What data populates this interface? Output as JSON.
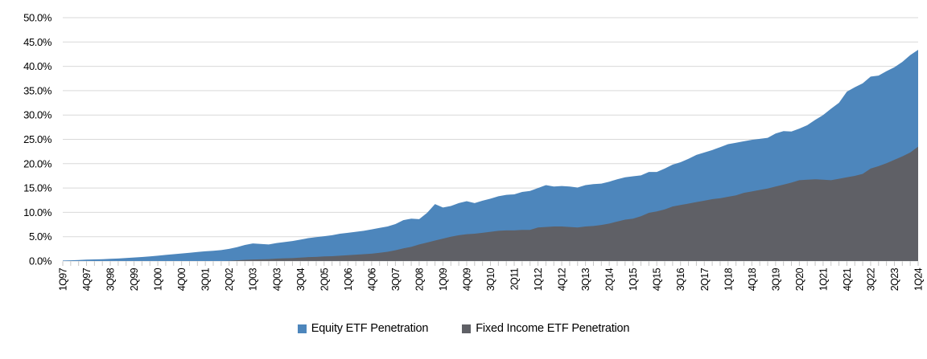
{
  "chart_data": {
    "type": "area",
    "title": "",
    "xlabel": "",
    "ylabel": "",
    "ylim": [
      0,
      50
    ],
    "y_tick_step": 5,
    "y_tick_format": "percent_one_decimal",
    "x_label_every": 3,
    "grid": "horizontal",
    "legend_position": "bottom-center",
    "x": [
      "1Q97",
      "2Q97",
      "3Q97",
      "4Q97",
      "1Q98",
      "2Q98",
      "3Q98",
      "4Q98",
      "1Q99",
      "2Q99",
      "3Q99",
      "4Q99",
      "1Q00",
      "2Q00",
      "3Q00",
      "4Q00",
      "1Q01",
      "2Q01",
      "3Q01",
      "4Q01",
      "1Q02",
      "2Q02",
      "3Q02",
      "4Q02",
      "1Q03",
      "2Q03",
      "3Q03",
      "4Q03",
      "1Q04",
      "2Q04",
      "3Q04",
      "4Q04",
      "1Q05",
      "2Q05",
      "3Q05",
      "4Q05",
      "1Q06",
      "2Q06",
      "3Q06",
      "4Q06",
      "1Q07",
      "2Q07",
      "3Q07",
      "4Q07",
      "1Q08",
      "2Q08",
      "3Q08",
      "4Q08",
      "1Q09",
      "2Q09",
      "3Q09",
      "4Q09",
      "1Q10",
      "2Q10",
      "3Q10",
      "4Q10",
      "1Q11",
      "2Q11",
      "3Q11",
      "4Q11",
      "1Q12",
      "2Q12",
      "3Q12",
      "4Q12",
      "1Q13",
      "2Q13",
      "3Q13",
      "4Q13",
      "1Q14",
      "2Q14",
      "3Q14",
      "4Q14",
      "1Q15",
      "2Q15",
      "3Q15",
      "4Q15",
      "1Q16",
      "2Q16",
      "3Q16",
      "4Q16",
      "1Q17",
      "2Q17",
      "3Q17",
      "4Q17",
      "1Q18",
      "2Q18",
      "3Q18",
      "4Q18",
      "1Q19",
      "2Q19",
      "3Q19",
      "4Q19",
      "1Q20",
      "2Q20",
      "3Q20",
      "4Q20",
      "1Q21",
      "2Q21",
      "3Q21",
      "4Q21",
      "1Q22",
      "2Q22",
      "3Q22",
      "4Q22",
      "1Q23",
      "2Q23",
      "3Q23",
      "4Q23",
      "1Q24"
    ],
    "series": [
      {
        "name": "Equity ETF Penetration",
        "color": "#4D86BC",
        "values": [
          0.1,
          0.15,
          0.2,
          0.28,
          0.33,
          0.38,
          0.45,
          0.52,
          0.62,
          0.72,
          0.82,
          0.95,
          1.1,
          1.25,
          1.4,
          1.55,
          1.7,
          1.85,
          2.0,
          2.1,
          2.25,
          2.5,
          2.85,
          3.3,
          3.6,
          3.5,
          3.4,
          3.7,
          3.9,
          4.1,
          4.4,
          4.7,
          4.9,
          5.1,
          5.3,
          5.6,
          5.8,
          6.0,
          6.2,
          6.5,
          6.8,
          7.1,
          7.6,
          8.4,
          8.7,
          8.6,
          9.9,
          11.7,
          11.0,
          11.3,
          11.9,
          12.3,
          11.9,
          12.4,
          12.8,
          13.3,
          13.6,
          13.7,
          14.2,
          14.4,
          15.0,
          15.6,
          15.3,
          15.4,
          15.3,
          15.1,
          15.6,
          15.8,
          15.9,
          16.3,
          16.8,
          17.2,
          17.4,
          17.6,
          18.3,
          18.3,
          19.0,
          19.8,
          20.3,
          21.0,
          21.8,
          22.3,
          22.8,
          23.4,
          24.0,
          24.3,
          24.6,
          24.9,
          25.1,
          25.3,
          26.2,
          26.7,
          26.6,
          27.2,
          27.9,
          29.0,
          30.0,
          31.3,
          32.5,
          34.8,
          35.7,
          36.5,
          37.9,
          38.1,
          39.0,
          39.8,
          40.9,
          42.3,
          43.4
        ]
      },
      {
        "name": "Fixed Income ETF Penetration",
        "color": "#5F6066",
        "values": [
          0,
          0,
          0,
          0,
          0,
          0,
          0,
          0,
          0,
          0,
          0,
          0,
          0,
          0,
          0,
          0,
          0,
          0,
          0,
          0,
          0,
          0.05,
          0.15,
          0.25,
          0.3,
          0.35,
          0.4,
          0.5,
          0.55,
          0.6,
          0.7,
          0.8,
          0.85,
          0.95,
          1.0,
          1.1,
          1.2,
          1.3,
          1.4,
          1.5,
          1.7,
          1.9,
          2.2,
          2.6,
          2.9,
          3.4,
          3.8,
          4.2,
          4.6,
          5.0,
          5.3,
          5.5,
          5.6,
          5.8,
          6.0,
          6.2,
          6.3,
          6.3,
          6.4,
          6.4,
          6.9,
          7.0,
          7.1,
          7.1,
          7.0,
          6.9,
          7.1,
          7.2,
          7.4,
          7.7,
          8.1,
          8.5,
          8.7,
          9.2,
          9.9,
          10.2,
          10.6,
          11.2,
          11.5,
          11.8,
          12.1,
          12.4,
          12.7,
          12.9,
          13.2,
          13.5,
          14.0,
          14.3,
          14.6,
          14.9,
          15.3,
          15.7,
          16.1,
          16.6,
          16.7,
          16.8,
          16.7,
          16.6,
          16.9,
          17.2,
          17.5,
          17.9,
          19.0,
          19.5,
          20.1,
          20.8,
          21.5,
          22.3,
          23.5
        ]
      }
    ],
    "y_tick_labels": [
      "0.0%",
      "5.0%",
      "10.0%",
      "15.0%",
      "20.0%",
      "25.0%",
      "30.0%",
      "35.0%",
      "40.0%",
      "45.0%",
      "50.0%"
    ]
  },
  "style": {
    "gridline_color": "#D9D9D9",
    "axis_line_color": "#D9D9D9",
    "tick_color": "#C6C6C6",
    "text_color": "#000000",
    "background": "#FFFFFF"
  }
}
